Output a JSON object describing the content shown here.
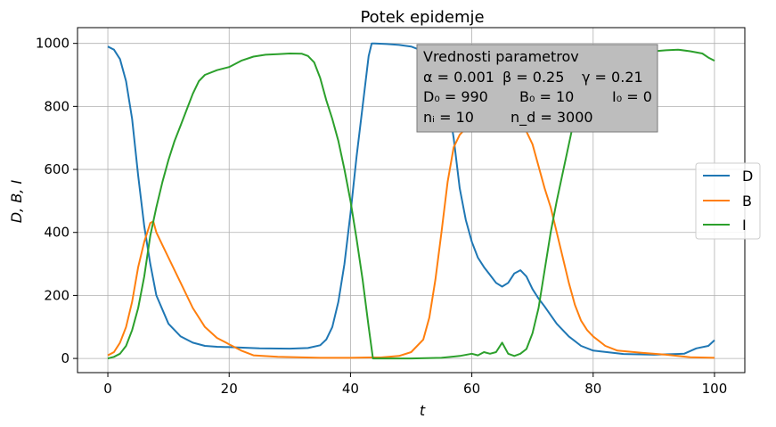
{
  "chart_data": {
    "type": "line",
    "title": "Potek epidemje",
    "xlabel": "t",
    "ylabel": "D, B, I",
    "xlim": [
      -5,
      105
    ],
    "ylim": [
      -45,
      1050
    ],
    "grid": true,
    "x_ticks": [
      0,
      20,
      40,
      60,
      80,
      100
    ],
    "y_ticks": [
      0,
      200,
      400,
      600,
      800,
      1000
    ],
    "legend": {
      "placement": "center-right",
      "entries": [
        "D",
        "B",
        "I"
      ]
    },
    "series": [
      {
        "name": "D",
        "color": "#1f77b4",
        "points": [
          [
            0,
            990
          ],
          [
            1,
            980
          ],
          [
            2,
            950
          ],
          [
            3,
            880
          ],
          [
            4,
            760
          ],
          [
            5,
            580
          ],
          [
            6,
            420
          ],
          [
            7,
            300
          ],
          [
            8,
            200
          ],
          [
            10,
            110
          ],
          [
            12,
            70
          ],
          [
            14,
            50
          ],
          [
            16,
            40
          ],
          [
            18,
            37
          ],
          [
            20,
            36
          ],
          [
            25,
            32
          ],
          [
            30,
            31
          ],
          [
            33,
            33
          ],
          [
            35,
            42
          ],
          [
            36,
            60
          ],
          [
            37,
            100
          ],
          [
            38,
            180
          ],
          [
            39,
            300
          ],
          [
            40,
            460
          ],
          [
            41,
            640
          ],
          [
            42,
            800
          ],
          [
            43,
            960
          ],
          [
            43.5,
            1000
          ],
          [
            44,
            1000
          ],
          [
            46,
            998
          ],
          [
            48,
            995
          ],
          [
            50,
            990
          ],
          [
            52,
            975
          ],
          [
            54,
            935
          ],
          [
            55,
            900
          ],
          [
            56,
            820
          ],
          [
            57,
            700
          ],
          [
            58,
            540
          ],
          [
            59,
            440
          ],
          [
            60,
            370
          ],
          [
            61,
            320
          ],
          [
            62,
            290
          ],
          [
            63,
            265
          ],
          [
            64,
            240
          ],
          [
            65,
            228
          ],
          [
            66,
            240
          ],
          [
            67,
            270
          ],
          [
            68,
            280
          ],
          [
            69,
            260
          ],
          [
            70,
            220
          ],
          [
            71,
            190
          ],
          [
            72,
            165
          ],
          [
            74,
            110
          ],
          [
            76,
            70
          ],
          [
            78,
            40
          ],
          [
            80,
            25
          ],
          [
            85,
            14
          ],
          [
            90,
            12
          ],
          [
            95,
            15
          ],
          [
            97,
            32
          ],
          [
            99,
            40
          ],
          [
            100,
            58
          ]
        ]
      },
      {
        "name": "B",
        "color": "#ff7f0e",
        "points": [
          [
            0,
            10
          ],
          [
            1,
            20
          ],
          [
            2,
            50
          ],
          [
            3,
            100
          ],
          [
            4,
            180
          ],
          [
            5,
            290
          ],
          [
            6,
            370
          ],
          [
            7,
            430
          ],
          [
            7.5,
            435
          ],
          [
            8,
            400
          ],
          [
            9,
            360
          ],
          [
            10,
            320
          ],
          [
            12,
            240
          ],
          [
            14,
            160
          ],
          [
            16,
            100
          ],
          [
            18,
            65
          ],
          [
            20,
            45
          ],
          [
            22,
            25
          ],
          [
            24,
            10
          ],
          [
            28,
            5
          ],
          [
            35,
            2
          ],
          [
            40,
            2
          ],
          [
            43,
            3
          ],
          [
            45,
            3
          ],
          [
            48,
            8
          ],
          [
            50,
            20
          ],
          [
            52,
            60
          ],
          [
            53,
            130
          ],
          [
            54,
            250
          ],
          [
            55,
            400
          ],
          [
            56,
            560
          ],
          [
            57,
            670
          ],
          [
            58,
            710
          ],
          [
            59,
            730
          ],
          [
            60,
            750
          ],
          [
            61,
            760
          ],
          [
            62,
            775
          ],
          [
            63,
            760
          ],
          [
            64,
            750
          ],
          [
            65,
            745
          ],
          [
            66,
            740
          ],
          [
            67,
            735
          ],
          [
            68,
            730
          ],
          [
            69,
            720
          ],
          [
            70,
            680
          ],
          [
            71,
            610
          ],
          [
            72,
            540
          ],
          [
            73,
            480
          ],
          [
            74,
            400
          ],
          [
            75,
            320
          ],
          [
            76,
            240
          ],
          [
            77,
            170
          ],
          [
            78,
            120
          ],
          [
            79,
            90
          ],
          [
            80,
            70
          ],
          [
            82,
            40
          ],
          [
            84,
            25
          ],
          [
            88,
            18
          ],
          [
            92,
            12
          ],
          [
            96,
            4
          ],
          [
            100,
            2
          ]
        ]
      },
      {
        "name": "I",
        "color": "#2ca02c",
        "points": [
          [
            0,
            0
          ],
          [
            1,
            5
          ],
          [
            2,
            15
          ],
          [
            3,
            40
          ],
          [
            4,
            90
          ],
          [
            5,
            160
          ],
          [
            6,
            260
          ],
          [
            7,
            390
          ],
          [
            8,
            480
          ],
          [
            9,
            560
          ],
          [
            10,
            630
          ],
          [
            11,
            690
          ],
          [
            12,
            740
          ],
          [
            13,
            790
          ],
          [
            14,
            840
          ],
          [
            15,
            880
          ],
          [
            16,
            900
          ],
          [
            18,
            915
          ],
          [
            20,
            925
          ],
          [
            22,
            945
          ],
          [
            24,
            958
          ],
          [
            26,
            964
          ],
          [
            28,
            966
          ],
          [
            30,
            968
          ],
          [
            32,
            967
          ],
          [
            33,
            960
          ],
          [
            34,
            940
          ],
          [
            35,
            890
          ],
          [
            36,
            820
          ],
          [
            37,
            760
          ],
          [
            38,
            690
          ],
          [
            39,
            600
          ],
          [
            40,
            500
          ],
          [
            41,
            380
          ],
          [
            42,
            250
          ],
          [
            43,
            100
          ],
          [
            43.7,
            0
          ],
          [
            45,
            0
          ],
          [
            50,
            0
          ],
          [
            55,
            2
          ],
          [
            58,
            8
          ],
          [
            60,
            15
          ],
          [
            61,
            10
          ],
          [
            62,
            20
          ],
          [
            63,
            15
          ],
          [
            64,
            20
          ],
          [
            65,
            50
          ],
          [
            66,
            15
          ],
          [
            67,
            8
          ],
          [
            68,
            15
          ],
          [
            69,
            30
          ],
          [
            70,
            80
          ],
          [
            71,
            160
          ],
          [
            72,
            280
          ],
          [
            73,
            400
          ],
          [
            74,
            500
          ],
          [
            75,
            590
          ],
          [
            76,
            680
          ],
          [
            77,
            770
          ],
          [
            78,
            850
          ],
          [
            79,
            900
          ],
          [
            80,
            930
          ],
          [
            82,
            950
          ],
          [
            84,
            960
          ],
          [
            86,
            965
          ],
          [
            88,
            970
          ],
          [
            90,
            975
          ],
          [
            92,
            978
          ],
          [
            94,
            980
          ],
          [
            96,
            975
          ],
          [
            98,
            968
          ],
          [
            99,
            955
          ],
          [
            100,
            945
          ]
        ]
      }
    ],
    "annotation_box": {
      "title": "Vrednosti parametrov",
      "rows": [
        [
          "α = 0.001",
          "β = 0.25",
          "γ = 0.21"
        ],
        [
          "D₀ = 990",
          "B₀ = 10",
          "I₀ = 0"
        ],
        [
          "nᵢ = 10",
          "n_d = 3000"
        ]
      ]
    }
  }
}
